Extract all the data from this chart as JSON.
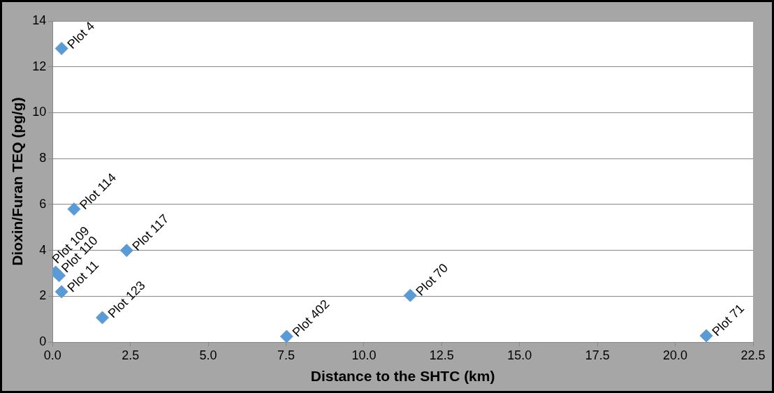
{
  "chart_data": {
    "type": "scatter",
    "xlabel": "Distance to the SHTC (km)",
    "ylabel": "Dioxin/Furan TEQ (pg/g)",
    "x": [
      0.29,
      0.69,
      2.38,
      0.1,
      0.21,
      0.29,
      1.6,
      7.52,
      11.49,
      21.0
    ],
    "series": [
      {
        "color": "#5b9bd5",
        "values": [
          12.8,
          5.8,
          4.0,
          3.05,
          2.9,
          2.2,
          1.07,
          0.25,
          2.04,
          0.28
        ]
      }
    ],
    "xlim": [
      0,
      22.5
    ],
    "xticks": [
      {
        "value": 0,
        "label": "0.0"
      },
      {
        "value": 2.5,
        "label": "2.5"
      },
      {
        "value": 5,
        "label": "5.0"
      },
      {
        "value": 7.5,
        "label": "7.5"
      },
      {
        "value": 10,
        "label": "10.0"
      },
      {
        "value": 12.5,
        "label": "12.5"
      },
      {
        "value": 15,
        "label": "15.0"
      },
      {
        "value": 17.5,
        "label": "17.5"
      },
      {
        "value": 20,
        "label": "20.0"
      },
      {
        "value": 22.5,
        "label": "22.5"
      }
    ],
    "ylim": [
      0,
      14
    ],
    "yticks": [
      0,
      2,
      4,
      6,
      8,
      10,
      12,
      14
    ],
    "grid": "y",
    "legend": false,
    "marker": "diamond",
    "annotations": [
      {
        "text": "Plot 4",
        "x": 0.29,
        "y": 12.8
      },
      {
        "text": "Plot 114",
        "x": 0.69,
        "y": 5.8
      },
      {
        "text": "Plot 117",
        "x": 2.38,
        "y": 4.0
      },
      {
        "text": "Plot 110",
        "x": 0.1,
        "y": 3.05
      },
      {
        "text": "Plot 109",
        "x": 0.21,
        "y": 2.9
      },
      {
        "text": "Plot 11",
        "x": 0.29,
        "y": 2.2
      },
      {
        "text": "Plot 123",
        "x": 1.6,
        "y": 1.07
      },
      {
        "text": "Plot 402",
        "x": 7.52,
        "y": 0.25
      },
      {
        "text": "Plot 70",
        "x": 11.49,
        "y": 2.04
      },
      {
        "text": "Plot 71",
        "x": 21.0,
        "y": 0.28
      }
    ]
  }
}
